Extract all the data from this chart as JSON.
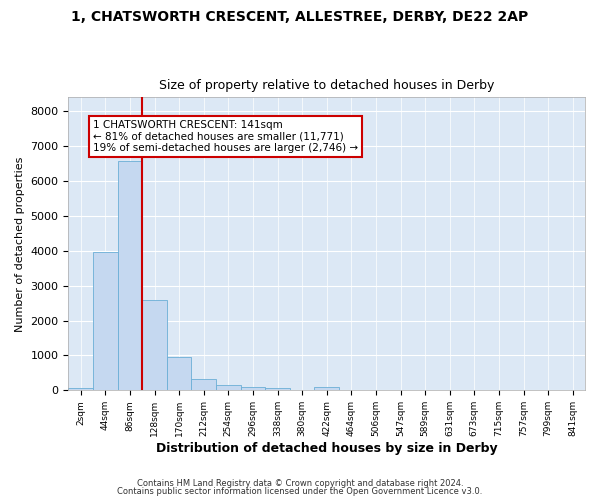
{
  "title1": "1, CHATSWORTH CRESCENT, ALLESTREE, DERBY, DE22 2AP",
  "title2": "Size of property relative to detached houses in Derby",
  "xlabel": "Distribution of detached houses by size in Derby",
  "ylabel": "Number of detached properties",
  "bar_labels": [
    "2sqm",
    "44sqm",
    "86sqm",
    "128sqm",
    "170sqm",
    "212sqm",
    "254sqm",
    "296sqm",
    "338sqm",
    "380sqm",
    "422sqm",
    "464sqm",
    "506sqm",
    "547sqm",
    "589sqm",
    "631sqm",
    "673sqm",
    "715sqm",
    "757sqm",
    "799sqm",
    "841sqm"
  ],
  "bar_values": [
    80,
    3980,
    6580,
    2600,
    950,
    330,
    140,
    100,
    80,
    0,
    100,
    0,
    0,
    0,
    0,
    0,
    0,
    0,
    0,
    0,
    0
  ],
  "bar_color": "#c5d8f0",
  "bar_edge_color": "#6baed6",
  "vline_xidx": 3,
  "vline_color": "#cc0000",
  "annotation_line1": "1 CHATSWORTH CRESCENT: 141sqm",
  "annotation_line2": "← 81% of detached houses are smaller (11,771)",
  "annotation_line3": "19% of semi-detached houses are larger (2,746) →",
  "annotation_box_edgecolor": "#cc0000",
  "ylim": [
    0,
    8400
  ],
  "yticks": [
    0,
    1000,
    2000,
    3000,
    4000,
    5000,
    6000,
    7000,
    8000
  ],
  "plot_bg": "#dce8f5",
  "fig_bg": "#ffffff",
  "grid_color": "#ffffff",
  "footer1": "Contains HM Land Registry data © Crown copyright and database right 2024.",
  "footer2": "Contains public sector information licensed under the Open Government Licence v3.0."
}
